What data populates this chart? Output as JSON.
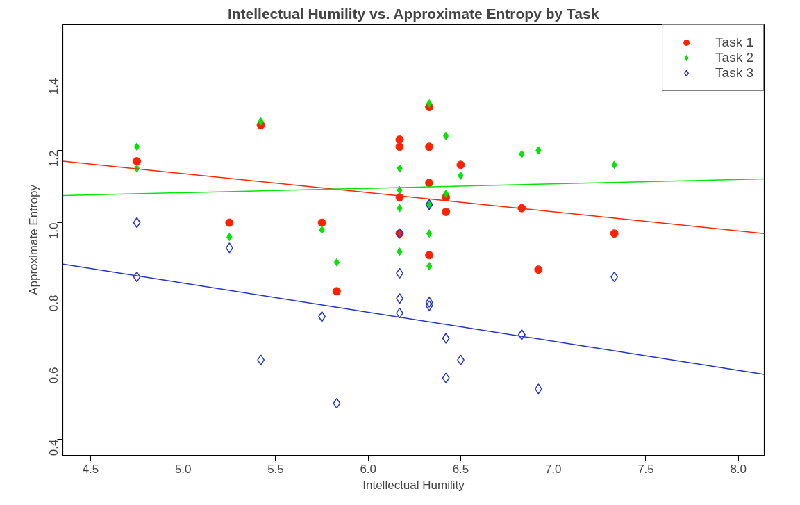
{
  "chart_data": {
    "type": "scatter",
    "title": "Intellectual Humility vs. Approximate Entropy by Task",
    "xlabel": "Intellectual Humility",
    "ylabel": "Approximate Entropy",
    "xlim": [
      4.35,
      8.14
    ],
    "ylim": [
      0.356,
      1.548
    ],
    "xticks": [
      4.5,
      {
        "value": 5,
        "label": "5.0"
      },
      5.5,
      {
        "value": 6,
        "label": "6.0"
      },
      6.5,
      {
        "value": 7,
        "label": "7.0"
      },
      7.5,
      {
        "value": 8,
        "label": "8.0"
      }
    ],
    "yticks": [
      0.4,
      0.6,
      0.8,
      {
        "value": 1,
        "label": "1.0"
      },
      1.2,
      1.4
    ],
    "grid": false,
    "legend": "top right",
    "series": [
      {
        "name": "Task 1",
        "color": "#ff2200",
        "marker": "circle",
        "x": [
          4.75,
          5.25,
          5.42,
          5.75,
          5.83,
          6.17,
          6.17,
          6.17,
          6.17,
          6.33,
          6.33,
          6.33,
          6.33,
          6.42,
          6.42,
          6.5,
          6.83,
          6.92,
          7.33
        ],
        "values": [
          1.17,
          1.0,
          1.27,
          1.0,
          0.81,
          1.23,
          1.21,
          1.07,
          0.97,
          1.32,
          1.21,
          1.11,
          0.91,
          1.07,
          1.03,
          1.16,
          1.04,
          0.87,
          0.97
        ]
      },
      {
        "name": "Task 2",
        "color": "#00e600",
        "marker": "diamond",
        "x": [
          4.75,
          4.75,
          5.25,
          5.42,
          5.75,
          5.83,
          6.17,
          6.17,
          6.17,
          6.17,
          6.33,
          6.33,
          6.33,
          6.33,
          6.42,
          6.42,
          6.5,
          6.83,
          6.92,
          7.33
        ],
        "values": [
          1.21,
          1.15,
          0.96,
          1.28,
          0.98,
          0.89,
          1.15,
          1.09,
          1.04,
          0.92,
          1.33,
          1.05,
          0.97,
          0.88,
          1.24,
          1.08,
          1.13,
          1.19,
          1.2,
          1.16
        ]
      },
      {
        "name": "Task 3",
        "color": "#2233cc",
        "marker": "diamond_open",
        "x": [
          4.75,
          4.75,
          5.25,
          5.42,
          5.75,
          5.83,
          6.17,
          6.17,
          6.17,
          6.17,
          6.33,
          6.33,
          6.33,
          6.42,
          6.42,
          6.5,
          6.83,
          6.92,
          7.33
        ],
        "values": [
          1.0,
          0.85,
          0.93,
          0.62,
          0.74,
          0.5,
          0.97,
          0.86,
          0.79,
          0.75,
          1.05,
          0.78,
          0.77,
          0.68,
          0.57,
          0.62,
          0.69,
          0.54,
          0.85
        ]
      },
      {
        "type": "line",
        "color": "#ff2200",
        "x": [
          4.35,
          8.14
        ],
        "values": [
          1.17,
          0.97
        ]
      },
      {
        "type": "line",
        "color": "#00e600",
        "x": [
          4.35,
          8.14
        ],
        "values": [
          1.075,
          1.121
        ]
      },
      {
        "type": "line",
        "color": "#2233cc",
        "x": [
          4.35,
          8.14
        ],
        "values": [
          0.885,
          0.58
        ]
      }
    ]
  }
}
